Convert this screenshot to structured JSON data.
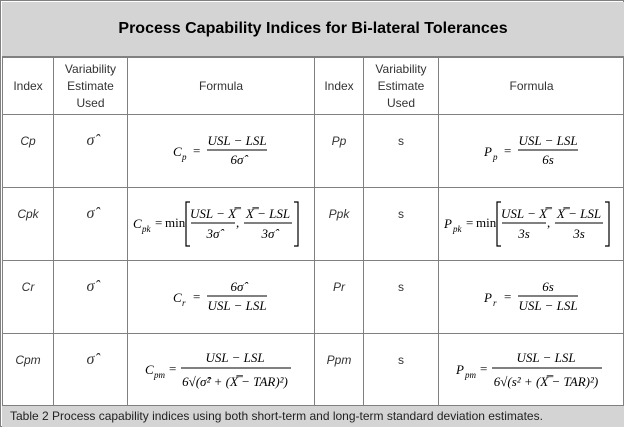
{
  "title": "Process Capability Indices for Bi-lateral Tolerances",
  "headers": {
    "index": "Index",
    "variability": "Variability Estimate Used",
    "formula": "Formula"
  },
  "rows": [
    {
      "left_index": "Cp",
      "left_var": "σ̂",
      "right_index": "Pp",
      "right_var": "s"
    },
    {
      "left_index": "Cpk",
      "left_var": "σ̂",
      "right_index": "Ppk",
      "right_var": "s"
    },
    {
      "left_index": "Cr",
      "left_var": "σ̂",
      "right_index": "Pr",
      "right_var": "s"
    },
    {
      "left_index": "Cpm",
      "left_var": "σ̂",
      "right_index": "Ppm",
      "right_var": "s"
    }
  ],
  "formulas": {
    "cp": {
      "lhs": "C",
      "sub": "p",
      "num": "USL − LSL",
      "den": "6σ̂"
    },
    "pp": {
      "lhs": "P",
      "sub": "p",
      "num": "USL − LSL",
      "den": "6s"
    },
    "cpk": {
      "lhs": "C",
      "sub": "pk",
      "min": "min",
      "num1": "USL − X̿",
      "den1": "3σ̂",
      "num2": "X̿ − LSL",
      "den2": "3σ̂"
    },
    "ppk": {
      "lhs": "P",
      "sub": "pk",
      "min": "min",
      "num1": "USL − X̿",
      "den1": "3s",
      "num2": "X̿ − LSL",
      "den2": "3s"
    },
    "cr": {
      "lhs": "C",
      "sub": "r",
      "num": "6σ̂",
      "den": "USL − LSL"
    },
    "pr": {
      "lhs": "P",
      "sub": "r",
      "num": "6s",
      "den": "USL − LSL"
    },
    "cpm": {
      "lhs": "C",
      "sub": "pm",
      "num": "USL − LSL",
      "den": "6√(σ̂² + (X̿ − TAR)²)"
    },
    "ppm": {
      "lhs": "P",
      "sub": "pm",
      "num": "USL − LSL",
      "den": "6√(s² + (X̿ − TAR)²)"
    }
  },
  "caption": "Table 2 Process capability indices using both short-term and long-term standard deviation estimates."
}
